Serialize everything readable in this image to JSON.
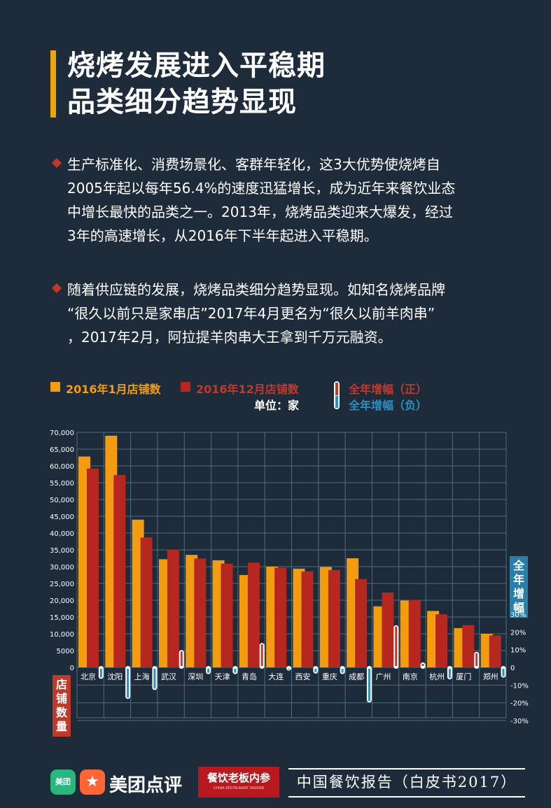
{
  "title": {
    "line1": "烧烤发展进入平稳期",
    "line2": "品类细分趋势显现"
  },
  "paragraphs": [
    {
      "lines": [
        "生产标准化、消费场景化、客群年轻化，这3大优势使烧烤自",
        "2005年起以每年56.4%的速度迅猛增长，成为近年来餐饮业态",
        "中增长最快的品类之一。2013年，烧烤品类迎来大爆发，经过",
        "3年的高速增长，从2016年下半年起进入平稳期。"
      ]
    },
    {
      "lines": [
        "随着供应链的发展，烧烤品类细分趋势显现。如知名烧烤品牌",
        "“很久以前只是家串店”2017年4月更名为“很久以前羊肉串”",
        "，2017年2月，阿拉提羊肉串大王拿到千万元融资。"
      ]
    }
  ],
  "legend": {
    "jan": "2016年1月店铺数",
    "dec": "2016年12月店铺数",
    "pos": "全年增幅（正）",
    "neg": "全年增幅（负）",
    "unit": "单位：家"
  },
  "colors": {
    "jan": "#f39c12",
    "dec": "#b5271f",
    "pos_red": "#c0392b",
    "neg_blue": "#2a8fc0",
    "grid": "#4d6f7f",
    "bg": "#1d2b3a"
  },
  "chart_data": {
    "type": "bar",
    "categories": [
      "北京",
      "沈阳",
      "上海",
      "武汉",
      "深圳",
      "天津",
      "青岛",
      "大连",
      "西安",
      "重庆",
      "成都",
      "广州",
      "南京",
      "杭州",
      "厦门",
      "郑州"
    ],
    "series": [
      {
        "name": "2016年1月店铺数",
        "values": [
          62800,
          69000,
          44000,
          32200,
          33500,
          31900,
          27500,
          30000,
          29400,
          29900,
          32500,
          18200,
          19900,
          16800,
          11700,
          10000
        ]
      },
      {
        "name": "2016年12月店铺数",
        "values": [
          59200,
          57300,
          38700,
          35100,
          32400,
          30900,
          31200,
          29700,
          28600,
          29000,
          26300,
          22300,
          20100,
          15800,
          12600,
          9500
        ]
      },
      {
        "name": "全年增幅",
        "values": [
          -5.7,
          -17,
          -12,
          9,
          -3,
          -3,
          13,
          -1,
          -2.7,
          -3,
          -19,
          23,
          2,
          -6,
          8,
          -5
        ]
      }
    ],
    "ylim": [
      0,
      70000
    ],
    "ylim_right": [
      -30,
      30
    ],
    "y_ticks": [
      "70,000",
      "65,000",
      "60,000",
      "55,000",
      "50,000",
      "45,000",
      "40,000",
      "35,000",
      "30,000",
      "25,000",
      "20,000",
      "15,000",
      "10,000",
      "5000",
      "0"
    ],
    "y_right_ticks": [
      "30%",
      "20%",
      "10%",
      "0",
      "-10%",
      "-20%",
      "-30%"
    ],
    "y_left_label": "店铺数量",
    "y_right_label": "全年增幅"
  },
  "footer": {
    "logo_small": "美团",
    "brand": "美团点评",
    "canyin_title": "餐饮老板内参",
    "canyin_sub": "CHINA RESTAURANT INSIDER",
    "report": "中国餐饮报告（白皮书2017）"
  }
}
